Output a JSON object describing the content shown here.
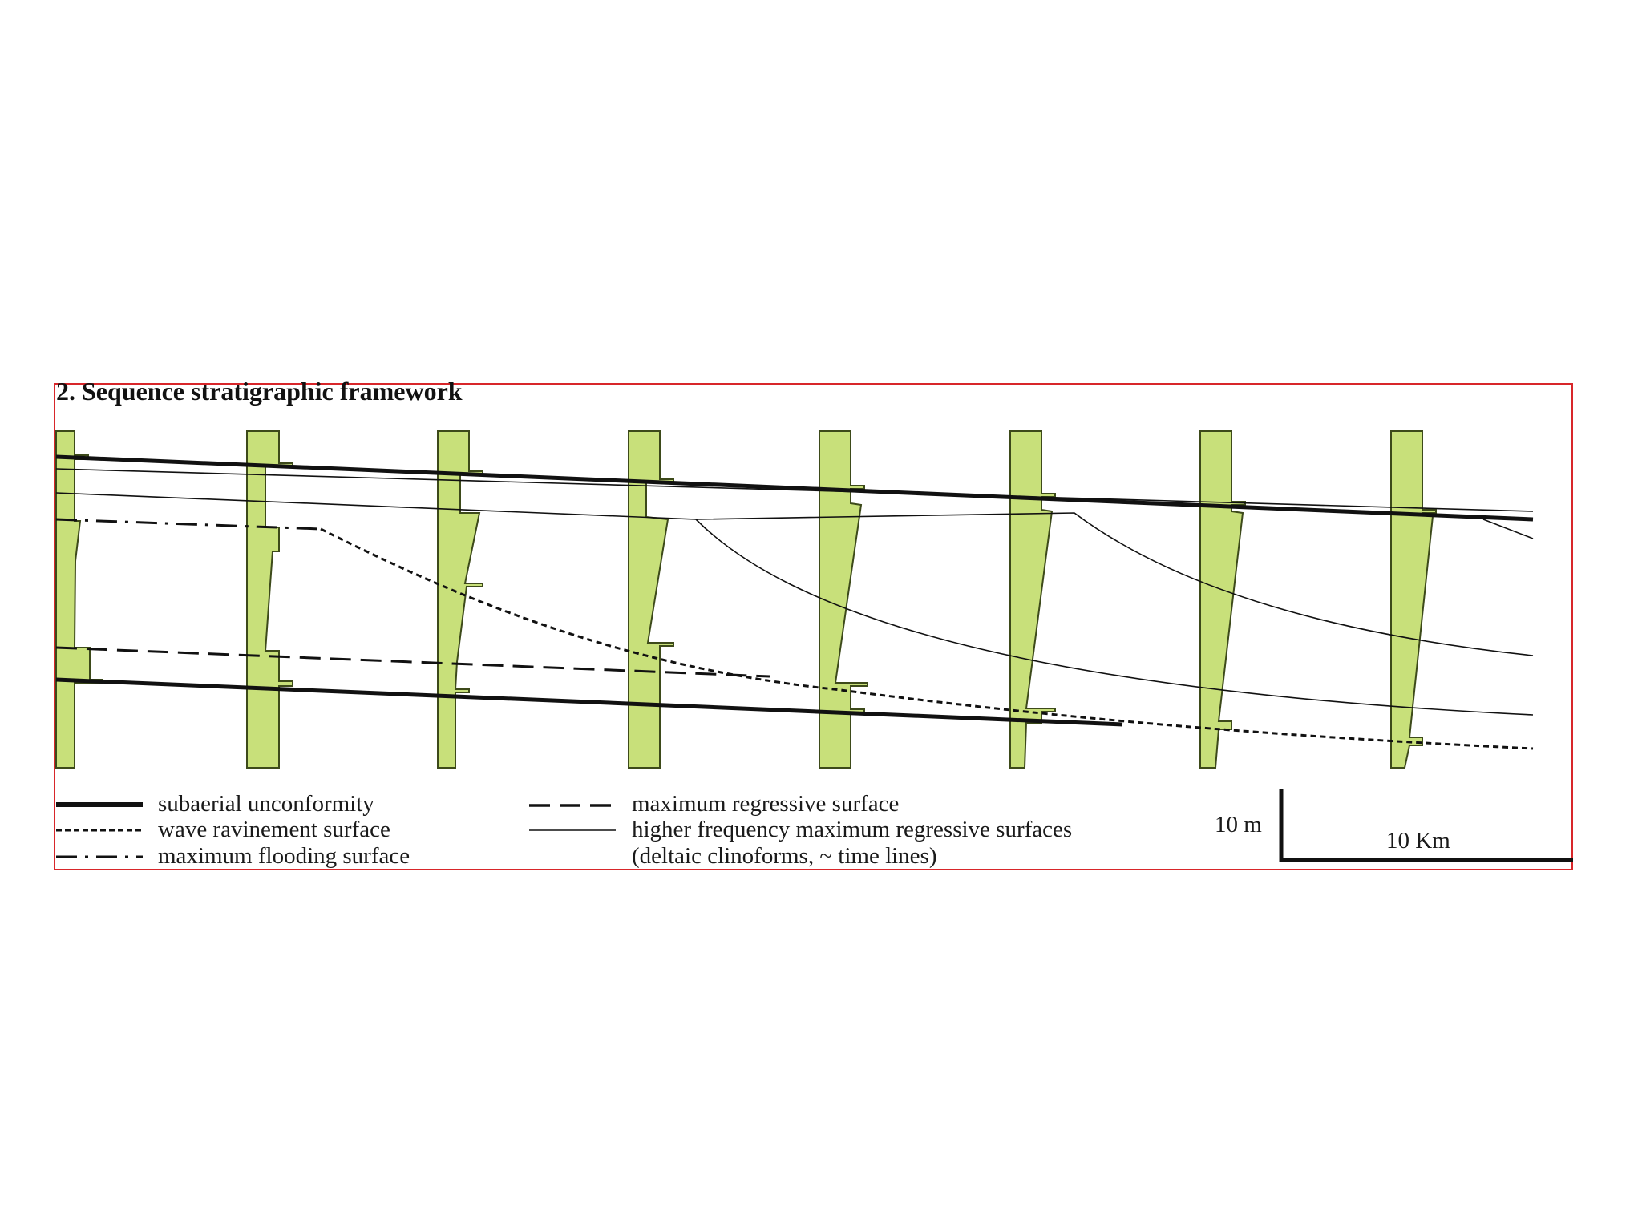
{
  "figure": {
    "title": "2. Sequence stratigraphic framework"
  },
  "legend": {
    "subaerial_unconformity": "subaerial unconformity",
    "wave_ravinement_surface": "wave ravinement surface",
    "maximum_flooding_surface": "maximum flooding surface",
    "maximum_regressive_surface": "maximum regressive surface",
    "higher_frequency_surfaces": "higher frequency maximum regressive surfaces",
    "higher_frequency_note": "(deltaic clinoforms, ~ time lines)"
  },
  "scale": {
    "vertical_label": "10 m",
    "horizontal_label": "10 Km"
  },
  "colors": {
    "log_fill": "#c8e07a",
    "log_stroke": "#3d4a1a",
    "line": "#111111",
    "frame": "#d8262a"
  }
}
